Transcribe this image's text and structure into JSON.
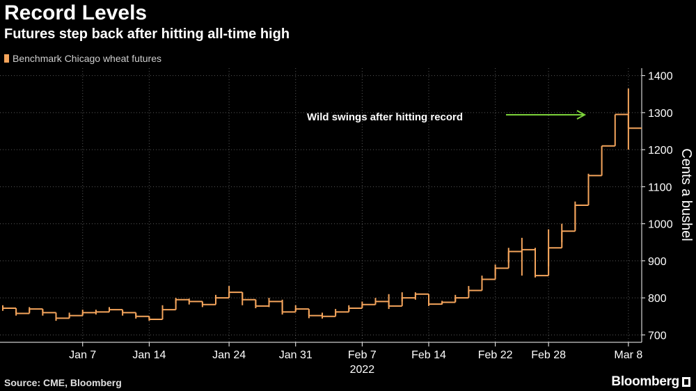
{
  "title": "Record Levels",
  "subtitle": "Futures step back after hitting all-time high",
  "legend": {
    "label": "Benchmark Chicago wheat futures"
  },
  "source": "Source: CME, Bloomberg",
  "brand": "Bloomberg",
  "colors": {
    "series": "#f5a55c",
    "arrow": "#7cd33a",
    "grid": "#5a5a5a",
    "axis": "#ffffff"
  },
  "chart_data": {
    "type": "line",
    "title": "Record Levels",
    "subtitle": "Futures step back after hitting all-time high",
    "xlabel": "2022",
    "ylabel": "Cents a bushel",
    "ylim": [
      680,
      1420
    ],
    "yticks": [
      700,
      800,
      900,
      1000,
      1100,
      1200,
      1300,
      1400
    ],
    "xticks": [
      {
        "label": "Jan 7",
        "index": 6
      },
      {
        "label": "Jan 14",
        "index": 11
      },
      {
        "label": "Jan 24",
        "index": 17
      },
      {
        "label": "Jan 31",
        "index": 22
      },
      {
        "label": "Feb 7",
        "index": 27
      },
      {
        "label": "Feb 14",
        "index": 32
      },
      {
        "label": "Feb 22",
        "index": 37
      },
      {
        "label": "Feb 28",
        "index": 41
      },
      {
        "label": "Mar 8",
        "index": 47
      }
    ],
    "year_label": "2022",
    "annotation": "Wild swings after hitting record",
    "series": [
      {
        "name": "Benchmark Chicago wheat futures",
        "values": [
          772,
          758,
          770,
          760,
          745,
          752,
          760,
          762,
          768,
          760,
          750,
          742,
          768,
          795,
          790,
          782,
          800,
          815,
          795,
          778,
          790,
          762,
          770,
          752,
          750,
          762,
          772,
          782,
          790,
          778,
          800,
          810,
          783,
          788,
          800,
          820,
          850,
          880,
          925,
          930,
          860,
          935,
          980,
          1050,
          1130,
          1210,
          1295,
          1258
        ],
        "lows": [
          765,
          752,
          762,
          752,
          738,
          745,
          754,
          755,
          762,
          752,
          744,
          738,
          758,
          785,
          782,
          775,
          790,
          800,
          780,
          772,
          775,
          755,
          765,
          745,
          744,
          755,
          765,
          775,
          782,
          770,
          790,
          795,
          778,
          782,
          790,
          812,
          830,
          860,
          895,
          860,
          855,
          885,
          950,
          985,
          1070,
          1210,
          1295,
          1200
        ],
        "highs": [
          780,
          765,
          775,
          768,
          752,
          760,
          768,
          768,
          775,
          765,
          758,
          750,
          780,
          800,
          798,
          790,
          808,
          832,
          815,
          795,
          800,
          795,
          780,
          765,
          760,
          770,
          780,
          790,
          800,
          810,
          815,
          815,
          790,
          792,
          808,
          832,
          860,
          890,
          935,
          962,
          935,
          985,
          1000,
          1060,
          1135,
          1210,
          1295,
          1365
        ]
      }
    ]
  }
}
